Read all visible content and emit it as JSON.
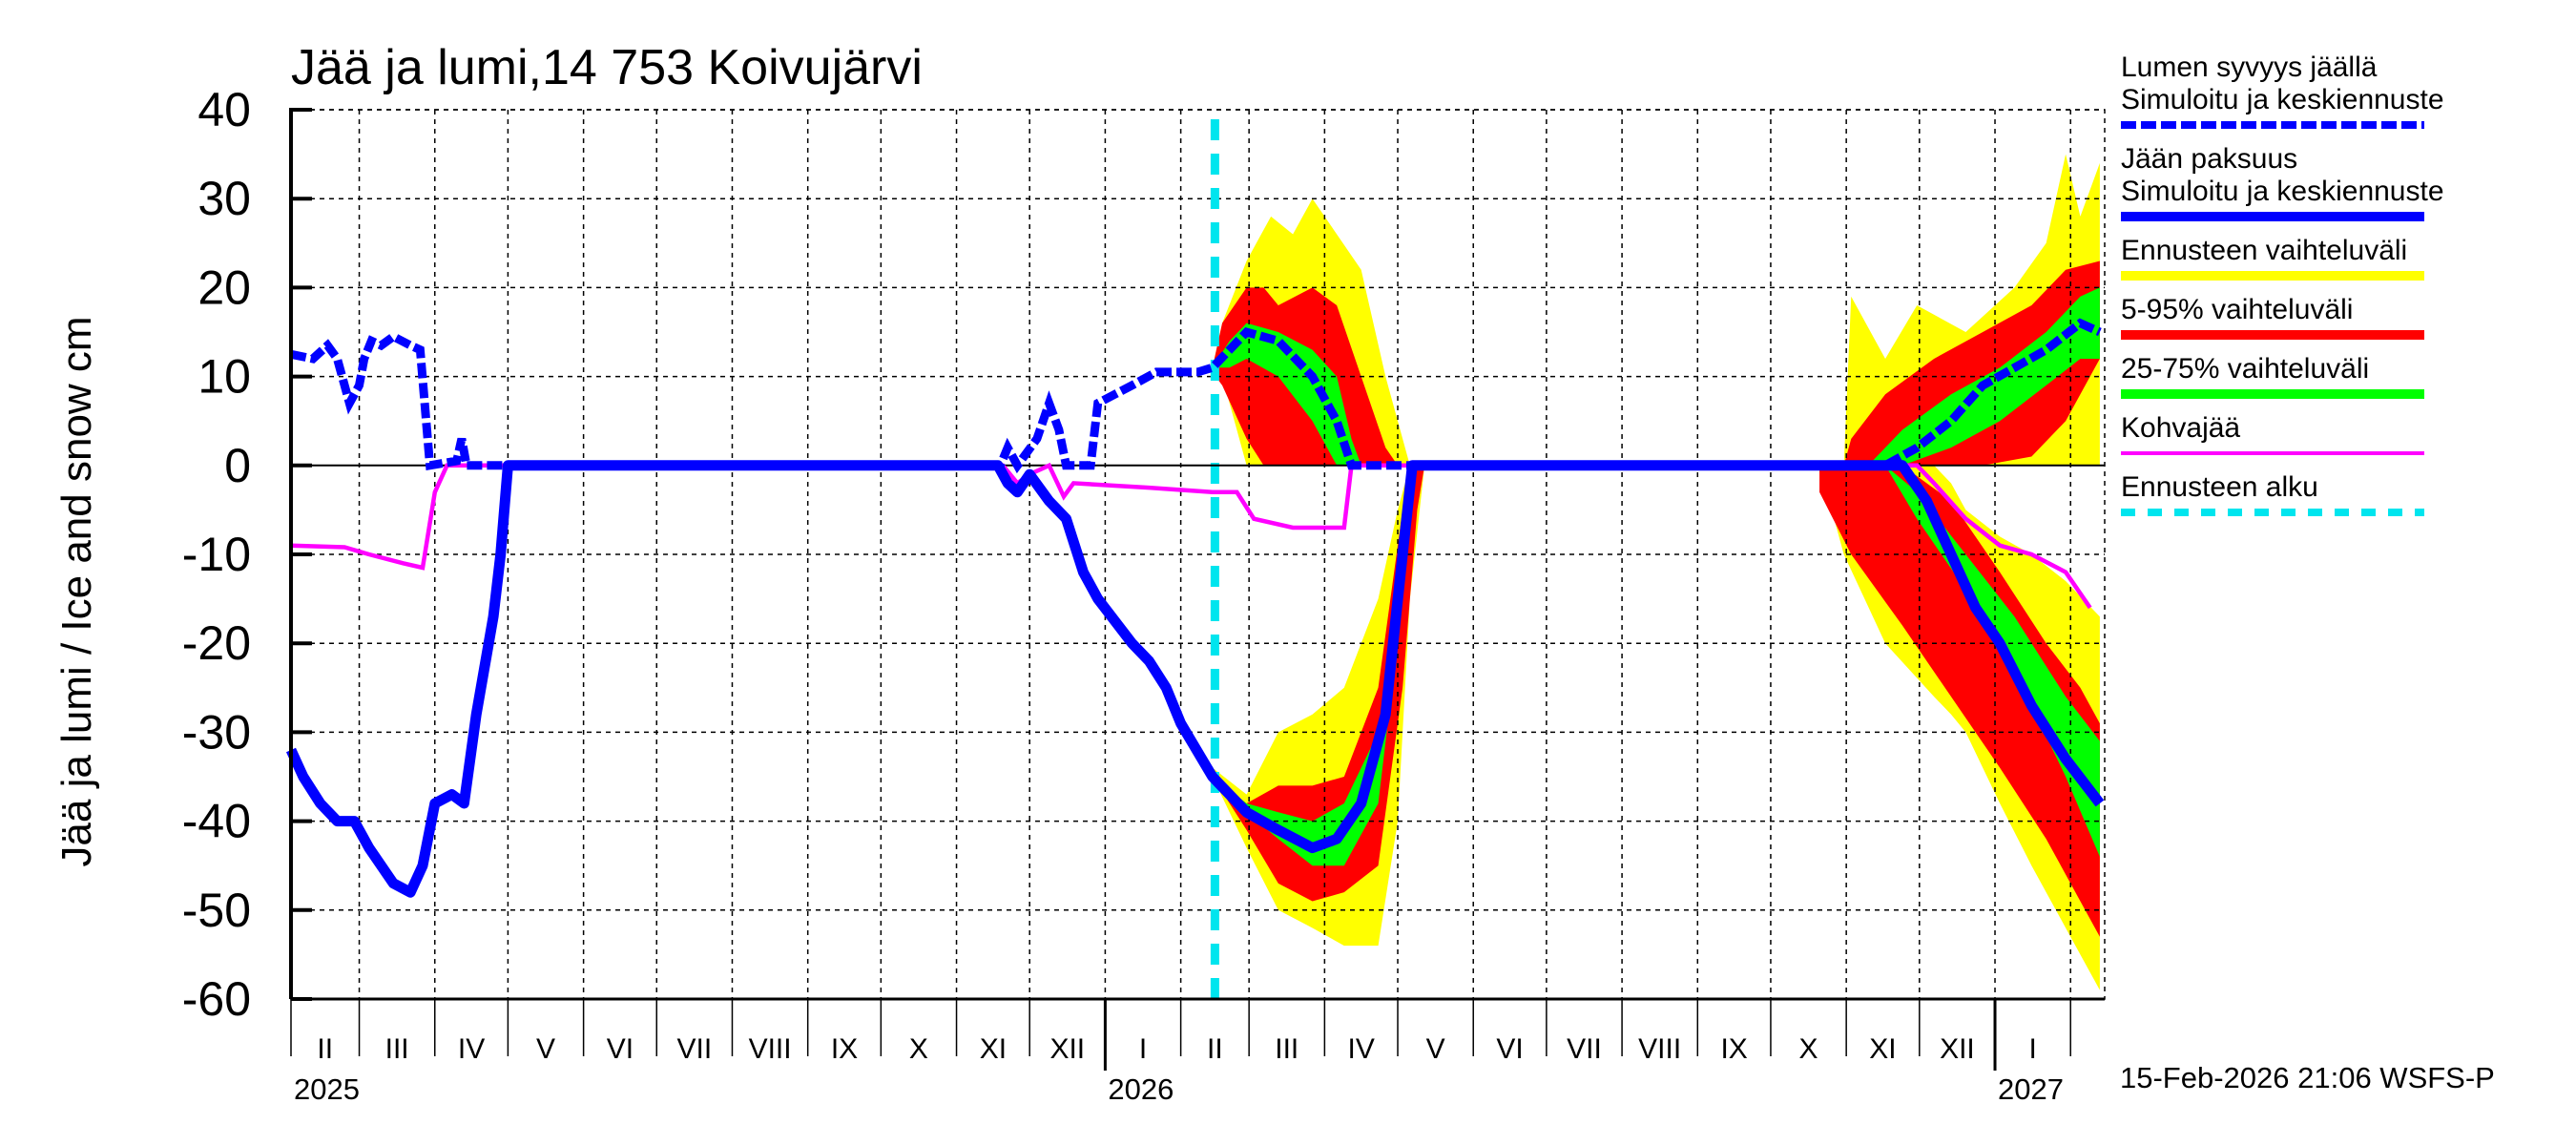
{
  "chart_data": {
    "type": "area",
    "title": "Jää ja lumi,14 753 Koivujärvi",
    "ylabel": "Jää ja lumi / Ice and snow    cm",
    "ylim": [
      -60,
      40
    ],
    "yticks": [
      40,
      30,
      20,
      10,
      0,
      -10,
      -20,
      -30,
      -40,
      -50,
      -60
    ],
    "xlim": [
      "2025-02-01",
      "2027-02-15"
    ],
    "grid": true,
    "legend_placement": "right",
    "months": [
      "II",
      "III",
      "IV",
      "V",
      "VI",
      "VII",
      "VIII",
      "IX",
      "X",
      "XI",
      "XII",
      "I",
      "II",
      "III",
      "IV",
      "V",
      "VI",
      "VII",
      "VIII",
      "IX",
      "X",
      "XI",
      "XII",
      "I"
    ],
    "month_starts": [
      "2025-02-01",
      "2025-03-01",
      "2025-04-01",
      "2025-05-01",
      "2025-06-01",
      "2025-07-01",
      "2025-08-01",
      "2025-09-01",
      "2025-10-01",
      "2025-11-01",
      "2025-12-01",
      "2026-01-01",
      "2026-02-01",
      "2026-03-01",
      "2026-04-01",
      "2026-05-01",
      "2026-06-01",
      "2026-07-01",
      "2026-08-01",
      "2026-09-01",
      "2026-10-01",
      "2026-11-01",
      "2026-12-01",
      "2027-01-01",
      "2027-02-01"
    ],
    "years": [
      {
        "label": "2025",
        "date": "2025-02-01"
      },
      {
        "label": "2026",
        "date": "2026-01-01"
      },
      {
        "label": "2027",
        "date": "2027-01-01"
      }
    ],
    "forecast_start": "2026-02-15",
    "footer": "15-Feb-2026 21:06 WSFS-P",
    "colors": {
      "snow": "#0000ff",
      "ice": "#0000ff",
      "yellow": "#ffff00",
      "red": "#ff0000",
      "green": "#00ff00",
      "kohva": "#ff00ff",
      "forecast": "#00e5ee"
    },
    "legend": [
      {
        "label1": "Lumen syvyys jäällä",
        "label2": "Simuloitu ja keskiennuste",
        "style": "dashed-blue"
      },
      {
        "label1": "Jään paksuus",
        "label2": "Simuloitu ja keskiennuste",
        "style": "solid-blue"
      },
      {
        "label1": "Ennusteen vaihteluväli",
        "style": "yellow"
      },
      {
        "label1": "5-95% vaihteluväli",
        "style": "red"
      },
      {
        "label1": "25-75% vaihteluväli",
        "style": "green"
      },
      {
        "label1": "Kohvajää",
        "style": "magenta"
      },
      {
        "label1": "Ennusteen alku",
        "style": "dashed-cyan"
      }
    ],
    "series": {
      "snow": [
        [
          "2025-02-01",
          12.5
        ],
        [
          "2025-02-10",
          12
        ],
        [
          "2025-02-16",
          13.5
        ],
        [
          "2025-02-20",
          12
        ],
        [
          "2025-02-25",
          7
        ],
        [
          "2025-03-01",
          9
        ],
        [
          "2025-03-03",
          12
        ],
        [
          "2025-03-06",
          14
        ],
        [
          "2025-03-10",
          13.5
        ],
        [
          "2025-03-15",
          14.5
        ],
        [
          "2025-03-22",
          13.5
        ],
        [
          "2025-03-26",
          13
        ],
        [
          "2025-03-30",
          0
        ],
        [
          "2025-04-10",
          0.5
        ],
        [
          "2025-04-12",
          3
        ],
        [
          "2025-04-14",
          0
        ],
        [
          "2025-11-19",
          0
        ],
        [
          "2025-11-22",
          2
        ],
        [
          "2025-11-26",
          0
        ],
        [
          "2025-12-04",
          3
        ],
        [
          "2025-12-09",
          7
        ],
        [
          "2025-12-13",
          4
        ],
        [
          "2025-12-16",
          0
        ],
        [
          "2025-12-26",
          0
        ],
        [
          "2025-12-29",
          7
        ],
        [
          "2026-01-05",
          8
        ],
        [
          "2026-01-12",
          9
        ],
        [
          "2026-01-22",
          10.5
        ],
        [
          "2026-02-08",
          10.5
        ],
        [
          "2026-02-14",
          11
        ],
        [
          "2026-02-28",
          15
        ],
        [
          "2026-03-13",
          14
        ],
        [
          "2026-03-27",
          10
        ],
        [
          "2026-04-06",
          5
        ],
        [
          "2026-04-12",
          0
        ],
        [
          "2026-11-17",
          0
        ],
        [
          "2026-11-30",
          2
        ],
        [
          "2026-12-14",
          5
        ],
        [
          "2026-12-27",
          9
        ],
        [
          "2027-01-09",
          11
        ],
        [
          "2027-01-22",
          13
        ],
        [
          "2027-02-05",
          16
        ],
        [
          "2027-02-13",
          15
        ]
      ],
      "ice": [
        [
          "2025-02-01",
          -32
        ],
        [
          "2025-02-06",
          -35
        ],
        [
          "2025-02-13",
          -38
        ],
        [
          "2025-02-20",
          -40
        ],
        [
          "2025-02-27",
          -40
        ],
        [
          "2025-03-05",
          -43
        ],
        [
          "2025-03-15",
          -47
        ],
        [
          "2025-03-22",
          -48
        ],
        [
          "2025-03-27",
          -45
        ],
        [
          "2025-04-01",
          -38
        ],
        [
          "2025-04-08",
          -37
        ],
        [
          "2025-04-13",
          -38
        ],
        [
          "2025-04-18",
          -28
        ],
        [
          "2025-04-25",
          -17
        ],
        [
          "2025-04-28",
          -10
        ],
        [
          "2025-05-01",
          0
        ],
        [
          "2025-11-18",
          0
        ],
        [
          "2025-11-22",
          -2
        ],
        [
          "2025-11-26",
          -3
        ],
        [
          "2025-12-01",
          -1
        ],
        [
          "2025-12-09",
          -4
        ],
        [
          "2025-12-16",
          -6
        ],
        [
          "2025-12-23",
          -12
        ],
        [
          "2025-12-29",
          -15
        ],
        [
          "2026-01-12",
          -20
        ],
        [
          "2026-01-19",
          -22
        ],
        [
          "2026-01-26",
          -25
        ],
        [
          "2026-02-01",
          -29
        ],
        [
          "2026-02-14",
          -35
        ],
        [
          "2026-02-28",
          -39
        ],
        [
          "2026-03-13",
          -41
        ],
        [
          "2026-03-27",
          -43
        ],
        [
          "2026-04-06",
          -42
        ],
        [
          "2026-04-16",
          -38
        ],
        [
          "2026-04-26",
          -28
        ],
        [
          "2026-05-03",
          -10
        ],
        [
          "2026-05-07",
          0
        ],
        [
          "2026-11-24",
          0
        ],
        [
          "2026-12-04",
          -4
        ],
        [
          "2026-12-14",
          -10
        ],
        [
          "2026-12-24",
          -16
        ],
        [
          "2027-01-03",
          -20
        ],
        [
          "2027-01-16",
          -27
        ],
        [
          "2027-01-30",
          -33
        ],
        [
          "2027-02-13",
          -38
        ]
      ],
      "kohva": [
        [
          "2025-02-01",
          -9
        ],
        [
          "2025-02-23",
          -9.2
        ],
        [
          "2025-03-05",
          -10
        ],
        [
          "2025-03-19",
          -11
        ],
        [
          "2025-03-27",
          -11.5
        ],
        [
          "2025-04-01",
          -3
        ],
        [
          "2025-04-06",
          0
        ],
        [
          "2025-11-20",
          0
        ],
        [
          "2025-11-26",
          -2
        ],
        [
          "2025-12-01",
          -1
        ],
        [
          "2025-12-09",
          0
        ],
        [
          "2025-12-15",
          -3.5
        ],
        [
          "2025-12-19",
          -2
        ],
        [
          "2026-01-19",
          -2.5
        ],
        [
          "2026-02-14",
          -3
        ],
        [
          "2026-02-24",
          -3
        ],
        [
          "2026-03-03",
          -6
        ],
        [
          "2026-03-19",
          -7
        ],
        [
          "2026-04-09",
          -7
        ],
        [
          "2026-04-12",
          0
        ],
        [
          "2026-11-30",
          0
        ],
        [
          "2026-12-07",
          -2
        ],
        [
          "2026-12-20",
          -6
        ],
        [
          "2027-01-03",
          -9
        ],
        [
          "2027-01-16",
          -10
        ],
        [
          "2027-01-30",
          -12
        ],
        [
          "2027-02-09",
          -16
        ]
      ]
    },
    "bands": [
      {
        "color": "yellow",
        "points": [
          [
            "2026-02-14",
            11,
            11
          ],
          [
            "2026-02-18",
            10,
            16
          ],
          [
            "2026-02-28",
            0,
            23
          ],
          [
            "2026-03-10",
            0,
            28
          ],
          [
            "2026-03-19",
            0,
            26
          ],
          [
            "2026-03-27",
            0,
            30
          ],
          [
            "2026-04-06",
            0,
            26
          ],
          [
            "2026-04-16",
            0,
            22
          ],
          [
            "2026-04-26",
            0,
            10
          ],
          [
            "2026-05-06",
            0,
            0
          ]
        ]
      },
      {
        "color": "yellow",
        "points": [
          [
            "2026-02-14",
            -35,
            -34
          ],
          [
            "2026-02-28",
            -43,
            -37
          ],
          [
            "2026-03-13",
            -50,
            -30
          ],
          [
            "2026-03-27",
            -52,
            -28
          ],
          [
            "2026-04-09",
            -54,
            -25
          ],
          [
            "2026-04-23",
            -54,
            -15
          ],
          [
            "2026-05-01",
            -40,
            -5
          ],
          [
            "2026-05-06",
            -15,
            0
          ],
          [
            "2026-05-12",
            0,
            0
          ]
        ]
      },
      {
        "color": "yellow",
        "points": [
          [
            "2026-10-31",
            0,
            0
          ],
          [
            "2026-11-03",
            0,
            19
          ],
          [
            "2026-11-17",
            0,
            12
          ],
          [
            "2026-11-30",
            0,
            18
          ],
          [
            "2026-12-20",
            0,
            15
          ],
          [
            "2027-01-09",
            0,
            20
          ],
          [
            "2027-01-22",
            0,
            25
          ],
          [
            "2027-01-30",
            0,
            35
          ],
          [
            "2027-02-05",
            0,
            28
          ],
          [
            "2027-02-13",
            0,
            34
          ]
        ]
      },
      {
        "color": "yellow",
        "points": [
          [
            "2026-10-21",
            0,
            0
          ],
          [
            "2026-10-31",
            -10,
            0
          ],
          [
            "2026-11-17",
            -20,
            0
          ],
          [
            "2026-12-07",
            -26,
            0
          ],
          [
            "2026-12-14",
            -28,
            -2
          ],
          [
            "2026-12-20",
            -30,
            -5
          ],
          [
            "2027-01-03",
            -38,
            -8
          ],
          [
            "2027-01-16",
            -45,
            -10
          ],
          [
            "2027-01-30",
            -52,
            -13
          ],
          [
            "2027-02-13",
            -59,
            -17
          ]
        ]
      },
      {
        "color": "red",
        "points": [
          [
            "2026-02-14",
            10.5,
            11
          ],
          [
            "2026-02-18",
            9,
            16
          ],
          [
            "2026-02-28",
            3,
            20
          ],
          [
            "2026-03-07",
            0,
            20
          ],
          [
            "2026-03-13",
            0,
            18
          ],
          [
            "2026-03-27",
            0,
            20
          ],
          [
            "2026-04-06",
            0,
            18
          ],
          [
            "2026-04-16",
            0,
            10
          ],
          [
            "2026-04-26",
            0,
            2
          ],
          [
            "2026-05-01",
            0,
            0
          ]
        ]
      },
      {
        "color": "red",
        "points": [
          [
            "2026-02-14",
            -35,
            -35
          ],
          [
            "2026-02-28",
            -41,
            -38
          ],
          [
            "2026-03-13",
            -47,
            -36
          ],
          [
            "2026-03-27",
            -49,
            -36
          ],
          [
            "2026-04-09",
            -48,
            -35
          ],
          [
            "2026-04-23",
            -45,
            -25
          ],
          [
            "2026-05-03",
            -25,
            -5
          ],
          [
            "2026-05-09",
            -5,
            0
          ],
          [
            "2026-05-12",
            0,
            0
          ]
        ]
      },
      {
        "color": "red",
        "points": [
          [
            "2026-10-31",
            0,
            0
          ],
          [
            "2026-11-03",
            0,
            3
          ],
          [
            "2026-11-17",
            0,
            8
          ],
          [
            "2026-12-07",
            0,
            12
          ],
          [
            "2026-12-27",
            0,
            15
          ],
          [
            "2027-01-16",
            1,
            18
          ],
          [
            "2027-01-30",
            5,
            22
          ],
          [
            "2027-02-13",
            12,
            23
          ]
        ]
      },
      {
        "color": "red",
        "points": [
          [
            "2026-10-21",
            -3,
            0
          ],
          [
            "2026-11-03",
            -10,
            0
          ],
          [
            "2026-11-24",
            -18,
            0
          ],
          [
            "2026-12-14",
            -26,
            -4
          ],
          [
            "2027-01-03",
            -34,
            -12
          ],
          [
            "2027-01-22",
            -42,
            -20
          ],
          [
            "2027-02-05",
            -49,
            -25
          ],
          [
            "2027-02-13",
            -53,
            -29
          ]
        ]
      },
      {
        "color": "green",
        "points": [
          [
            "2026-02-14",
            11,
            11
          ],
          [
            "2026-02-21",
            11,
            14
          ],
          [
            "2026-02-28",
            12,
            16
          ],
          [
            "2026-03-13",
            10,
            15
          ],
          [
            "2026-03-27",
            5,
            13
          ],
          [
            "2026-04-06",
            0,
            10
          ],
          [
            "2026-04-12",
            0,
            3
          ],
          [
            "2026-04-16",
            0,
            0
          ]
        ]
      },
      {
        "color": "green",
        "points": [
          [
            "2026-02-14",
            -35,
            -35
          ],
          [
            "2026-02-28",
            -39,
            -38
          ],
          [
            "2026-03-13",
            -42,
            -39
          ],
          [
            "2026-03-27",
            -45,
            -40
          ],
          [
            "2026-04-09",
            -45,
            -38
          ],
          [
            "2026-04-23",
            -38,
            -30
          ],
          [
            "2026-05-03",
            -15,
            -8
          ],
          [
            "2026-05-07",
            0,
            0
          ]
        ]
      },
      {
        "color": "green",
        "points": [
          [
            "2026-11-10",
            0,
            0
          ],
          [
            "2026-11-24",
            0,
            4
          ],
          [
            "2026-12-14",
            2,
            8
          ],
          [
            "2027-01-03",
            5,
            11
          ],
          [
            "2027-01-22",
            9,
            15
          ],
          [
            "2027-02-05",
            12,
            19
          ],
          [
            "2027-02-13",
            12,
            20
          ]
        ]
      },
      {
        "color": "green",
        "points": [
          [
            "2026-11-17",
            0,
            0
          ],
          [
            "2026-11-30",
            -6,
            -3
          ],
          [
            "2026-12-20",
            -14,
            -10
          ],
          [
            "2027-01-09",
            -23,
            -17
          ],
          [
            "2027-01-30",
            -35,
            -26
          ],
          [
            "2027-02-13",
            -44,
            -31
          ]
        ]
      }
    ]
  }
}
